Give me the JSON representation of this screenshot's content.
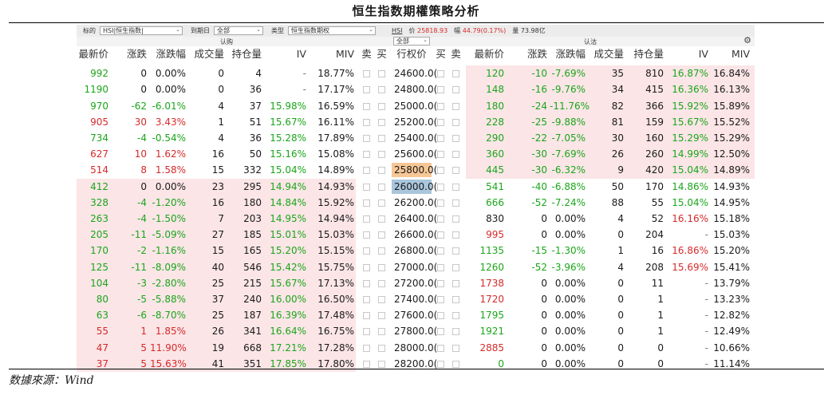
{
  "title": "恒生指数期權策略分析",
  "source": "数據來源：Wind",
  "filter": {
    "label_underlying": "标的",
    "underlying_value": "HSI|恒生指数|",
    "label_expiry": "到期日",
    "expiry_value": "全部",
    "label_type": "类型",
    "type_value": "恒生指数期权",
    "ticker": "HSI",
    "price_label": "价",
    "price": "25818.93",
    "change_label": "幅",
    "change": "44.79(0.17%)",
    "volume_label": "量",
    "volume": "73.98亿"
  },
  "groups": {
    "call": "认购",
    "put": "认沽",
    "strike_filter": "全部"
  },
  "headers": {
    "call": [
      "最新价",
      "涨跌",
      "涨跌幅",
      "成交量",
      "持仓量",
      "IV",
      "MIV",
      "卖",
      "买"
    ],
    "strike": "行权价",
    "put": [
      "买",
      "卖",
      "最新价",
      "涨跌",
      "涨跌幅",
      "成交量",
      "持仓量",
      "IV",
      "MIV"
    ]
  },
  "colors": {
    "up": "#d62a2a",
    "down": "#1ba61b",
    "itm_shade": "#fbe5e7",
    "atm_upper": "#f6c796",
    "atm_lower": "#a9c6dc"
  },
  "rows": [
    {
      "cl": "992",
      "cc": "0",
      "cp": "0.00%",
      "cv": "0",
      "co": "4",
      "civ": "-",
      "cmiv": "18.77%",
      "k": "24600.0(",
      "pl": "120",
      "pc": "-10",
      "pp": "-7.69%",
      "pv": "35",
      "po": "810",
      "piv": "16.87%",
      "pmiv": "16.84%",
      "cpc": "g",
      "ccc": "dk",
      "pcc": "g",
      "civc": "dim",
      "pivc": "g"
    },
    {
      "cl": "1190",
      "cc": "0",
      "cp": "0.00%",
      "cv": "0",
      "co": "36",
      "civ": "-",
      "cmiv": "17.17%",
      "k": "24800.0(",
      "pl": "148",
      "pc": "-16",
      "pp": "-9.76%",
      "pv": "34",
      "po": "415",
      "piv": "16.36%",
      "pmiv": "16.13%",
      "cpc": "g",
      "ccc": "dk",
      "pcc": "g",
      "civc": "dim",
      "pivc": "g"
    },
    {
      "cl": "970",
      "cc": "-62",
      "cp": "-6.01%",
      "cv": "4",
      "co": "37",
      "civ": "15.98%",
      "cmiv": "16.59%",
      "k": "25000.0(",
      "pl": "180",
      "pc": "-24",
      "pp": "-11.76%",
      "pv": "82",
      "po": "366",
      "piv": "15.92%",
      "pmiv": "15.89%",
      "cpc": "g",
      "ccc": "g",
      "pcc": "g",
      "civc": "g",
      "pivc": "g"
    },
    {
      "cl": "905",
      "cc": "30",
      "cp": "3.43%",
      "cv": "1",
      "co": "51",
      "civ": "15.67%",
      "cmiv": "16.11%",
      "k": "25200.0(",
      "pl": "228",
      "pc": "-25",
      "pp": "-9.88%",
      "pv": "81",
      "po": "159",
      "piv": "15.67%",
      "pmiv": "15.52%",
      "cpc": "rd",
      "ccc": "rd",
      "pcc": "g",
      "civc": "g",
      "pivc": "g"
    },
    {
      "cl": "734",
      "cc": "-4",
      "cp": "-0.54%",
      "cv": "4",
      "co": "36",
      "civ": "15.28%",
      "cmiv": "17.89%",
      "k": "25400.0(",
      "pl": "290",
      "pc": "-22",
      "pp": "-7.05%",
      "pv": "30",
      "po": "160",
      "piv": "15.29%",
      "pmiv": "15.29%",
      "cpc": "g",
      "ccc": "g",
      "pcc": "g",
      "civc": "g",
      "pivc": "g"
    },
    {
      "cl": "627",
      "cc": "10",
      "cp": "1.62%",
      "cv": "16",
      "co": "50",
      "civ": "15.16%",
      "cmiv": "15.08%",
      "k": "25600.0(",
      "pl": "360",
      "pc": "-30",
      "pp": "-7.69%",
      "pv": "26",
      "po": "260",
      "piv": "14.99%",
      "pmiv": "12.50%",
      "cpc": "rd",
      "ccc": "rd",
      "pcc": "g",
      "civc": "g",
      "pivc": "g"
    },
    {
      "cl": "514",
      "cc": "8",
      "cp": "1.58%",
      "cv": "15",
      "co": "332",
      "civ": "15.04%",
      "cmiv": "14.89%",
      "k": "25800.0(",
      "pl": "445",
      "pc": "-30",
      "pp": "-6.32%",
      "pv": "9",
      "po": "420",
      "piv": "15.04%",
      "pmiv": "14.89%",
      "cpc": "rd",
      "ccc": "rd",
      "pcc": "g",
      "civc": "g",
      "pivc": "g"
    },
    {
      "cl": "412",
      "cc": "0",
      "cp": "0.00%",
      "cv": "23",
      "co": "295",
      "civ": "14.94%",
      "cmiv": "14.93%",
      "k": "26000.0(",
      "pl": "541",
      "pc": "-40",
      "pp": "-6.88%",
      "pv": "50",
      "po": "170",
      "piv": "14.86%",
      "pmiv": "14.93%",
      "cpc": "g",
      "ccc": "dk",
      "pcc": "g",
      "civc": "g",
      "pivc": "g"
    },
    {
      "cl": "328",
      "cc": "-4",
      "cp": "-1.20%",
      "cv": "16",
      "co": "180",
      "civ": "14.84%",
      "cmiv": "15.92%",
      "k": "26200.0(",
      "pl": "666",
      "pc": "-52",
      "pp": "-7.24%",
      "pv": "88",
      "po": "55",
      "piv": "15.04%",
      "pmiv": "14.95%",
      "cpc": "g",
      "ccc": "g",
      "pcc": "g",
      "civc": "g",
      "pivc": "g"
    },
    {
      "cl": "263",
      "cc": "-4",
      "cp": "-1.50%",
      "cv": "7",
      "co": "203",
      "civ": "14.95%",
      "cmiv": "14.94%",
      "k": "26400.0(",
      "pl": "830",
      "pc": "0",
      "pp": "0.00%",
      "pv": "4",
      "po": "52",
      "piv": "16.16%",
      "pmiv": "15.18%",
      "cpc": "g",
      "ccc": "g",
      "pcc": "dk",
      "civc": "g",
      "pivc": "rd"
    },
    {
      "cl": "205",
      "cc": "-11",
      "cp": "-5.09%",
      "cv": "27",
      "co": "185",
      "civ": "15.01%",
      "cmiv": "15.03%",
      "k": "26600.0(",
      "pl": "995",
      "pc": "0",
      "pp": "0.00%",
      "pv": "0",
      "po": "204",
      "piv": "-",
      "pmiv": "15.03%",
      "cpc": "g",
      "ccc": "g",
      "pcc": "rd",
      "civc": "g",
      "pivc": "dim"
    },
    {
      "cl": "170",
      "cc": "-2",
      "cp": "-1.16%",
      "cv": "15",
      "co": "165",
      "civ": "15.20%",
      "cmiv": "15.15%",
      "k": "26800.0(",
      "pl": "1135",
      "pc": "-15",
      "pp": "-1.30%",
      "pv": "1",
      "po": "16",
      "piv": "16.86%",
      "pmiv": "15.20%",
      "cpc": "g",
      "ccc": "g",
      "pcc": "g",
      "civc": "g",
      "pivc": "rd"
    },
    {
      "cl": "125",
      "cc": "-11",
      "cp": "-8.09%",
      "cv": "40",
      "co": "546",
      "civ": "15.42%",
      "cmiv": "15.75%",
      "k": "27000.0(",
      "pl": "1260",
      "pc": "-52",
      "pp": "-3.96%",
      "pv": "4",
      "po": "208",
      "piv": "15.69%",
      "pmiv": "15.41%",
      "cpc": "g",
      "ccc": "g",
      "pcc": "g",
      "civc": "g",
      "pivc": "rd"
    },
    {
      "cl": "104",
      "cc": "-3",
      "cp": "-2.80%",
      "cv": "25",
      "co": "215",
      "civ": "15.67%",
      "cmiv": "17.13%",
      "k": "27200.0(",
      "pl": "1738",
      "pc": "0",
      "pp": "0.00%",
      "pv": "0",
      "po": "11",
      "piv": "-",
      "pmiv": "13.79%",
      "cpc": "g",
      "ccc": "g",
      "pcc": "rd",
      "civc": "g",
      "pivc": "dim"
    },
    {
      "cl": "80",
      "cc": "-5",
      "cp": "-5.88%",
      "cv": "37",
      "co": "240",
      "civ": "16.00%",
      "cmiv": "16.50%",
      "k": "27400.0(",
      "pl": "1720",
      "pc": "0",
      "pp": "0.00%",
      "pv": "0",
      "po": "1",
      "piv": "-",
      "pmiv": "13.23%",
      "cpc": "g",
      "ccc": "g",
      "pcc": "rd",
      "civc": "g",
      "pivc": "dim"
    },
    {
      "cl": "63",
      "cc": "-6",
      "cp": "-8.70%",
      "cv": "25",
      "co": "187",
      "civ": "16.39%",
      "cmiv": "17.48%",
      "k": "27600.0(",
      "pl": "1795",
      "pc": "0",
      "pp": "0.00%",
      "pv": "0",
      "po": "1",
      "piv": "-",
      "pmiv": "12.82%",
      "cpc": "g",
      "ccc": "g",
      "pcc": "g",
      "civc": "g",
      "pivc": "dim"
    },
    {
      "cl": "55",
      "cc": "1",
      "cp": "1.85%",
      "cv": "26",
      "co": "341",
      "civ": "16.64%",
      "cmiv": "16.75%",
      "k": "27800.0(",
      "pl": "1921",
      "pc": "0",
      "pp": "0.00%",
      "pv": "0",
      "po": "1",
      "piv": "-",
      "pmiv": "12.49%",
      "cpc": "rd",
      "ccc": "rd",
      "pcc": "g",
      "civc": "g",
      "pivc": "dim"
    },
    {
      "cl": "47",
      "cc": "5",
      "cp": "11.90%",
      "cv": "19",
      "co": "668",
      "civ": "17.21%",
      "cmiv": "17.28%",
      "k": "28000.0(",
      "pl": "2885",
      "pc": "0",
      "pp": "0.00%",
      "pv": "0",
      "po": "0",
      "piv": "-",
      "pmiv": "10.66%",
      "cpc": "rd",
      "ccc": "rd",
      "pcc": "rd",
      "civc": "g",
      "pivc": "dim"
    },
    {
      "cl": "37",
      "cc": "5",
      "cp": "15.63%",
      "cv": "41",
      "co": "351",
      "civ": "17.85%",
      "cmiv": "17.80%",
      "k": "28200.0(",
      "pl": "0",
      "pc": "0",
      "pp": "0.00%",
      "pv": "0",
      "po": "0",
      "piv": "-",
      "pmiv": "11.14%",
      "cpc": "rd",
      "ccc": "rd",
      "pcc": "g",
      "civc": "g",
      "pivc": "dim"
    }
  ]
}
